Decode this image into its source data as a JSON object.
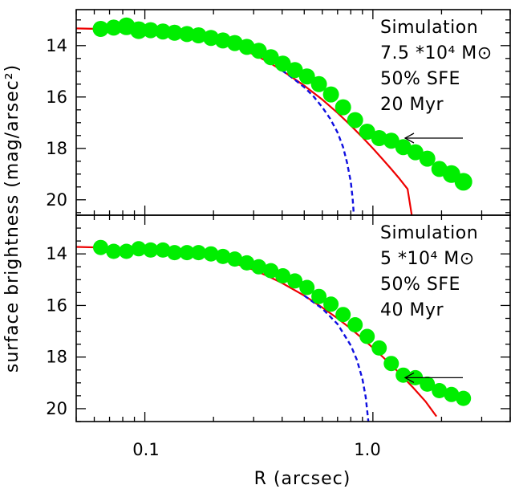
{
  "chart_data": [
    {
      "type": "scatter",
      "panel": "top",
      "annotation": [
        "Simulation",
        "7.5 *10⁴ M⊙",
        "50% SFE",
        "20 Myr"
      ],
      "xlim": [
        0.05,
        4.0
      ],
      "ylim": [
        20.6,
        12.6
      ],
      "x_scale": "log",
      "y_ticks": [
        14,
        16,
        18,
        20
      ],
      "grid": false,
      "arrow_y": 17.6,
      "series": [
        {
          "kind": "points",
          "color": "#00ee00",
          "x": [
            0.064,
            0.073,
            0.083,
            0.094,
            0.106,
            0.12,
            0.135,
            0.153,
            0.172,
            0.195,
            0.22,
            0.248,
            0.28,
            0.316,
            0.357,
            0.403,
            0.455,
            0.514,
            0.58,
            0.655,
            0.74,
            0.836,
            0.944,
            1.066,
            1.204,
            1.359,
            1.535,
            1.733,
            1.957,
            2.21,
            2.495
          ],
          "y": [
            13.35,
            13.3,
            13.25,
            13.4,
            13.4,
            13.45,
            13.5,
            13.55,
            13.6,
            13.7,
            13.8,
            13.9,
            14.05,
            14.2,
            14.45,
            14.7,
            14.95,
            15.2,
            15.5,
            15.9,
            16.4,
            16.9,
            17.35,
            17.6,
            17.7,
            17.95,
            18.15,
            18.4,
            18.8,
            19.0,
            19.3
          ],
          "size": [
            10,
            10,
            11,
            11,
            10,
            10,
            10,
            10,
            10,
            10,
            10,
            10,
            10,
            10,
            10,
            10,
            10,
            10,
            10,
            10,
            10,
            10,
            10,
            10,
            10,
            10,
            10,
            10,
            10,
            11,
            11
          ]
        },
        {
          "kind": "line",
          "color": "#ee0000",
          "style": "solid",
          "x": [
            0.05,
            0.07,
            0.1,
            0.13,
            0.16,
            0.2,
            0.25,
            0.3,
            0.35,
            0.4,
            0.5,
            0.6,
            0.7,
            0.8,
            0.9,
            1.0,
            1.1,
            1.2,
            1.3,
            1.42,
            1.48
          ],
          "y": [
            13.33,
            13.36,
            13.42,
            13.52,
            13.63,
            13.8,
            14.05,
            14.34,
            14.65,
            14.97,
            15.56,
            16.1,
            16.62,
            17.11,
            17.57,
            18.0,
            18.41,
            18.79,
            19.15,
            19.58,
            20.6
          ]
        },
        {
          "kind": "line",
          "color": "#1010e0",
          "style": "dashed",
          "x": [
            0.4,
            0.45,
            0.5,
            0.55,
            0.6,
            0.65,
            0.7,
            0.74,
            0.77,
            0.8,
            0.815,
            0.825
          ],
          "y": [
            14.97,
            15.3,
            15.62,
            15.98,
            16.4,
            16.85,
            17.38,
            17.95,
            18.55,
            19.3,
            19.95,
            20.6
          ]
        }
      ]
    },
    {
      "type": "scatter",
      "panel": "bottom",
      "annotation": [
        "Simulation",
        "5 *10⁴ M⊙",
        "50% SFE",
        "40 Myr"
      ],
      "xlim": [
        0.05,
        4.0
      ],
      "ylim": [
        20.5,
        12.5
      ],
      "x_scale": "log",
      "x_ticks": [
        0.1,
        1.0
      ],
      "x_tick_labels": [
        "0.1",
        "1.0"
      ],
      "y_ticks": [
        14,
        16,
        18,
        20
      ],
      "grid": false,
      "arrow_y": 18.8,
      "series": [
        {
          "kind": "points",
          "color": "#00ee00",
          "x": [
            0.064,
            0.073,
            0.083,
            0.094,
            0.106,
            0.12,
            0.135,
            0.153,
            0.172,
            0.195,
            0.22,
            0.248,
            0.28,
            0.316,
            0.357,
            0.403,
            0.455,
            0.514,
            0.58,
            0.655,
            0.74,
            0.836,
            0.944,
            1.066,
            1.204,
            1.359,
            1.535,
            1.733,
            1.957,
            2.21,
            2.495
          ],
          "y": [
            13.75,
            13.9,
            13.9,
            13.8,
            13.85,
            13.85,
            13.95,
            13.95,
            13.95,
            14.0,
            14.1,
            14.2,
            14.35,
            14.5,
            14.65,
            14.85,
            15.05,
            15.3,
            15.65,
            15.95,
            16.35,
            16.75,
            17.2,
            17.65,
            18.25,
            18.7,
            18.8,
            19.05,
            19.3,
            19.45,
            19.6
          ]
        },
        {
          "kind": "line",
          "color": "#ee0000",
          "style": "solid",
          "x": [
            0.05,
            0.07,
            0.1,
            0.13,
            0.16,
            0.2,
            0.25,
            0.3,
            0.35,
            0.4,
            0.5,
            0.6,
            0.7,
            0.8,
            0.9,
            1.0,
            1.1,
            1.2,
            1.3,
            1.5,
            1.7,
            1.9
          ],
          "y": [
            13.73,
            13.76,
            13.82,
            13.9,
            14.0,
            14.15,
            14.38,
            14.62,
            14.88,
            15.13,
            15.62,
            16.08,
            16.5,
            16.9,
            17.28,
            17.64,
            17.98,
            18.3,
            18.6,
            19.18,
            19.72,
            20.3
          ]
        },
        {
          "kind": "line",
          "color": "#1010e0",
          "style": "dashed",
          "x": [
            0.5,
            0.6,
            0.7,
            0.8,
            0.85,
            0.9,
            0.93,
            0.955
          ],
          "y": [
            15.62,
            16.12,
            16.72,
            17.55,
            18.1,
            18.85,
            19.55,
            20.5
          ]
        }
      ]
    }
  ],
  "axes": {
    "xlabel": "R (arcsec)",
    "ylabel": "surface brightness (mag/arsec²)",
    "y_tick_labels": [
      "14",
      "16",
      "18",
      "20"
    ]
  }
}
